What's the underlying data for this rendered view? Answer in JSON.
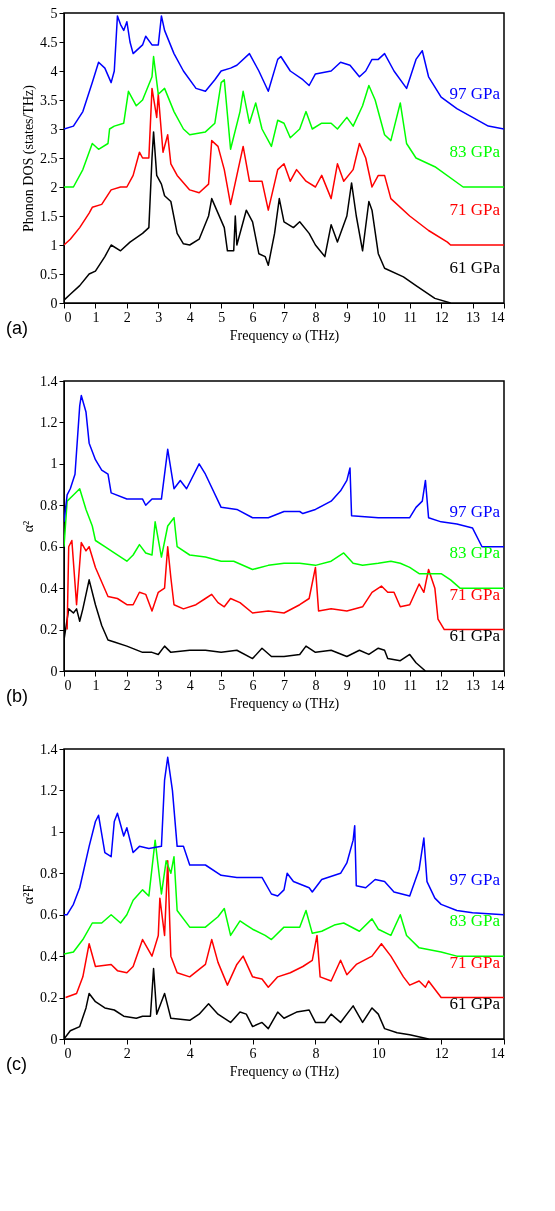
{
  "chart_data": [
    {
      "type": "line",
      "xlabel": "Frequency ω (THz)",
      "ylabel": "Phonon DOS (states/THz)",
      "annotations": [
        "(a)"
      ],
      "grid": false,
      "xlim": [
        0,
        14
      ],
      "xticks": [
        0,
        1,
        2,
        3,
        4,
        5,
        6,
        7,
        8,
        9,
        10,
        11,
        12,
        13,
        14
      ],
      "ylim": [
        0,
        5
      ],
      "yticks": [
        0,
        0.5,
        1,
        1.5,
        2,
        2.5,
        3,
        3.5,
        4,
        4.5,
        5
      ],
      "series": [
        {
          "name": "61 GPa",
          "color": "#000000",
          "x": [
            0,
            0.2,
            0.5,
            0.8,
            1.0,
            1.3,
            1.5,
            1.8,
            2.1,
            2.5,
            2.7,
            2.8,
            2.85,
            2.95,
            3.1,
            3.2,
            3.4,
            3.6,
            3.8,
            4.0,
            4.3,
            4.6,
            4.7,
            4.9,
            5.1,
            5.2,
            5.4,
            5.45,
            5.5,
            5.8,
            6.0,
            6.2,
            6.4,
            6.5,
            6.7,
            6.85,
            7.0,
            7.3,
            7.5,
            7.8,
            8.0,
            8.3,
            8.5,
            8.7,
            9.0,
            9.15,
            9.3,
            9.5,
            9.7,
            9.8,
            10.0,
            10.2,
            10.8,
            11.2,
            11.8,
            12.3
          ],
          "values": [
            0.05,
            0.15,
            0.3,
            0.5,
            0.55,
            0.8,
            1.0,
            0.9,
            1.05,
            1.2,
            1.3,
            2.5,
            2.95,
            2.2,
            2.05,
            1.85,
            1.75,
            1.2,
            1.02,
            1.0,
            1.1,
            1.5,
            1.8,
            1.55,
            1.3,
            0.9,
            0.9,
            1.5,
            1.0,
            1.6,
            1.4,
            0.85,
            0.8,
            0.65,
            1.2,
            1.8,
            1.4,
            1.3,
            1.4,
            1.2,
            1.0,
            0.8,
            1.35,
            1.05,
            1.5,
            2.07,
            1.5,
            0.9,
            1.75,
            1.6,
            0.85,
            0.6,
            0.45,
            0.3,
            0.08,
            0.0
          ]
        },
        {
          "name": "71 GPa",
          "color": "#ff0000",
          "x": [
            0,
            0.2,
            0.5,
            0.8,
            0.9,
            1.2,
            1.5,
            1.8,
            2.0,
            2.2,
            2.4,
            2.5,
            2.7,
            2.8,
            2.95,
            3.0,
            3.15,
            3.3,
            3.4,
            3.6,
            4.0,
            4.3,
            4.6,
            4.7,
            4.9,
            5.1,
            5.3,
            5.5,
            5.7,
            5.9,
            6.1,
            6.3,
            6.5,
            6.8,
            7.0,
            7.2,
            7.4,
            7.7,
            8.0,
            8.2,
            8.5,
            8.7,
            8.9,
            9.2,
            9.4,
            9.6,
            9.8,
            10.0,
            10.2,
            10.4,
            11.0,
            11.6,
            12.2,
            12.3,
            14
          ],
          "values": [
            1.0,
            1.1,
            1.3,
            1.55,
            1.65,
            1.7,
            1.95,
            2.0,
            2.0,
            2.2,
            2.6,
            2.5,
            2.5,
            3.7,
            3.2,
            3.6,
            2.6,
            2.9,
            2.4,
            2.2,
            1.95,
            1.9,
            2.05,
            2.8,
            2.7,
            2.3,
            1.7,
            2.2,
            2.7,
            2.1,
            2.1,
            2.1,
            1.6,
            2.3,
            2.4,
            2.1,
            2.3,
            2.1,
            2.0,
            2.2,
            1.8,
            2.4,
            2.1,
            2.3,
            2.75,
            2.5,
            2.0,
            2.2,
            2.2,
            1.8,
            1.5,
            1.25,
            1.05,
            1.0,
            1.0
          ]
        },
        {
          "name": "83 GPa",
          "color": "#00ff00",
          "x": [
            0,
            0.3,
            0.6,
            0.9,
            1.1,
            1.4,
            1.45,
            1.6,
            1.9,
            2.05,
            2.3,
            2.5,
            2.8,
            2.85,
            3.0,
            3.2,
            3.5,
            3.8,
            4.0,
            4.5,
            4.8,
            5.0,
            5.1,
            5.3,
            5.6,
            5.7,
            5.9,
            6.1,
            6.3,
            6.6,
            6.8,
            7.0,
            7.2,
            7.5,
            7.7,
            7.9,
            8.2,
            8.5,
            8.7,
            9.0,
            9.2,
            9.5,
            9.7,
            9.9,
            10.2,
            10.4,
            10.7,
            10.9,
            11.2,
            11.8,
            12.7,
            14
          ],
          "values": [
            2.0,
            2.0,
            2.3,
            2.75,
            2.65,
            2.75,
            3.0,
            3.05,
            3.1,
            3.65,
            3.4,
            3.5,
            3.9,
            4.25,
            3.6,
            3.7,
            3.3,
            3.0,
            2.9,
            2.95,
            3.1,
            3.8,
            3.85,
            2.65,
            3.3,
            3.65,
            3.1,
            3.45,
            3.0,
            2.7,
            3.15,
            3.1,
            2.85,
            3.0,
            3.3,
            3.0,
            3.1,
            3.1,
            3.0,
            3.2,
            3.05,
            3.4,
            3.75,
            3.5,
            2.9,
            2.8,
            3.45,
            2.75,
            2.5,
            2.35,
            2.0,
            2.0
          ]
        },
        {
          "name": "97 GPa",
          "color": "#0000ff",
          "x": [
            0,
            0.3,
            0.6,
            0.9,
            1.1,
            1.3,
            1.5,
            1.6,
            1.7,
            1.8,
            1.9,
            2.0,
            2.1,
            2.2,
            2.5,
            2.6,
            2.8,
            3.0,
            3.1,
            3.2,
            3.5,
            3.8,
            4.2,
            4.5,
            4.8,
            5.0,
            5.3,
            5.5,
            5.9,
            6.2,
            6.5,
            6.8,
            6.9,
            7.2,
            7.6,
            7.8,
            8.0,
            8.5,
            8.8,
            9.1,
            9.4,
            9.6,
            9.8,
            10.0,
            10.2,
            10.5,
            10.9,
            11.2,
            11.4,
            11.6,
            12.0,
            12.5,
            13.0,
            13.5,
            14
          ],
          "values": [
            3.0,
            3.05,
            3.3,
            3.8,
            4.15,
            4.05,
            3.8,
            4.0,
            4.95,
            4.8,
            4.7,
            4.85,
            4.5,
            4.3,
            4.45,
            4.6,
            4.45,
            4.45,
            4.95,
            4.7,
            4.3,
            4.0,
            3.7,
            3.65,
            3.85,
            4.0,
            4.05,
            4.1,
            4.3,
            4.0,
            3.65,
            4.2,
            4.25,
            4.0,
            3.85,
            3.75,
            3.95,
            4.0,
            4.15,
            4.1,
            3.9,
            4.0,
            4.2,
            4.2,
            4.3,
            4.0,
            3.7,
            4.2,
            4.35,
            3.9,
            3.55,
            3.35,
            3.2,
            3.05,
            3.0
          ]
        }
      ]
    },
    {
      "type": "line",
      "xlabel": "Frequency ω (THz)",
      "ylabel": "α²",
      "annotations": [
        "(b)"
      ],
      "grid": false,
      "xlim": [
        0,
        14
      ],
      "xticks": [
        0,
        1,
        2,
        3,
        4,
        5,
        6,
        7,
        8,
        9,
        10,
        11,
        12,
        13,
        14
      ],
      "ylim": [
        0,
        1.4
      ],
      "yticks": [
        0,
        0.2,
        0.4,
        0.6,
        0.8,
        1,
        1.2,
        1.4
      ],
      "series": [
        {
          "name": "61 GPa",
          "color": "#000000",
          "x": [
            0,
            0.05,
            0.15,
            0.3,
            0.4,
            0.5,
            0.6,
            0.8,
            1.0,
            1.2,
            1.4,
            1.6,
            2.0,
            2.5,
            2.8,
            3.0,
            3.2,
            3.4,
            4.0,
            4.5,
            5.0,
            5.5,
            6.0,
            6.3,
            6.6,
            7.0,
            7.5,
            7.7,
            8.0,
            8.5,
            9.0,
            9.4,
            9.7,
            10.0,
            10.2,
            10.3,
            10.7,
            11.0,
            11.2,
            11.5
          ],
          "values": [
            0.15,
            0.2,
            0.3,
            0.28,
            0.3,
            0.24,
            0.3,
            0.44,
            0.32,
            0.22,
            0.15,
            0.14,
            0.12,
            0.09,
            0.09,
            0.08,
            0.12,
            0.09,
            0.1,
            0.1,
            0.09,
            0.1,
            0.06,
            0.11,
            0.07,
            0.07,
            0.08,
            0.12,
            0.09,
            0.1,
            0.07,
            0.1,
            0.08,
            0.11,
            0.1,
            0.06,
            0.05,
            0.08,
            0.04,
            0.0
          ]
        },
        {
          "name": "71 GPa",
          "color": "#ff0000",
          "x": [
            0.1,
            0.15,
            0.25,
            0.4,
            0.55,
            0.7,
            0.8,
            1.0,
            1.2,
            1.4,
            1.7,
            2.0,
            2.2,
            2.4,
            2.6,
            2.8,
            3.0,
            3.2,
            3.3,
            3.4,
            3.5,
            3.8,
            4.2,
            4.5,
            4.7,
            4.9,
            5.1,
            5.3,
            5.6,
            6.0,
            6.5,
            7.0,
            7.5,
            7.8,
            8.0,
            8.1,
            8.5,
            9.0,
            9.5,
            9.8,
            10.1,
            10.3,
            10.5,
            10.7,
            11.0,
            11.3,
            11.45,
            11.6,
            11.8,
            11.9,
            12.1,
            14
          ],
          "values": [
            0.2,
            0.6,
            0.63,
            0.32,
            0.62,
            0.58,
            0.6,
            0.5,
            0.43,
            0.36,
            0.35,
            0.32,
            0.32,
            0.38,
            0.37,
            0.29,
            0.38,
            0.4,
            0.6,
            0.45,
            0.32,
            0.3,
            0.32,
            0.35,
            0.37,
            0.33,
            0.31,
            0.35,
            0.33,
            0.28,
            0.29,
            0.28,
            0.32,
            0.35,
            0.5,
            0.29,
            0.3,
            0.29,
            0.31,
            0.38,
            0.41,
            0.38,
            0.38,
            0.31,
            0.32,
            0.42,
            0.38,
            0.49,
            0.4,
            0.25,
            0.2,
            0.2
          ]
        },
        {
          "name": "83 GPa",
          "color": "#00ff00",
          "x": [
            0,
            0.1,
            0.3,
            0.5,
            0.7,
            0.9,
            1.0,
            1.3,
            1.6,
            2.0,
            2.2,
            2.4,
            2.6,
            2.8,
            2.9,
            3.1,
            3.3,
            3.5,
            3.6,
            4.0,
            4.5,
            5.0,
            5.4,
            6.0,
            6.5,
            7.0,
            7.5,
            8.0,
            8.5,
            8.9,
            9.2,
            9.5,
            10.0,
            10.4,
            10.7,
            11.0,
            11.3,
            12.0,
            12.3,
            12.6,
            14
          ],
          "values": [
            0.6,
            0.82,
            0.85,
            0.88,
            0.78,
            0.7,
            0.63,
            0.6,
            0.57,
            0.53,
            0.56,
            0.61,
            0.57,
            0.56,
            0.72,
            0.55,
            0.7,
            0.74,
            0.6,
            0.56,
            0.55,
            0.53,
            0.53,
            0.49,
            0.51,
            0.52,
            0.52,
            0.51,
            0.53,
            0.57,
            0.52,
            0.51,
            0.52,
            0.53,
            0.52,
            0.5,
            0.47,
            0.47,
            0.44,
            0.4,
            0.4
          ]
        },
        {
          "name": "97 GPa",
          "color": "#0000ff",
          "x": [
            0,
            0.1,
            0.2,
            0.35,
            0.5,
            0.55,
            0.7,
            0.8,
            1.0,
            1.2,
            1.4,
            1.5,
            2.0,
            2.5,
            2.6,
            2.8,
            3.1,
            3.3,
            3.5,
            3.7,
            3.9,
            4.3,
            4.5,
            5.0,
            5.5,
            6.0,
            6.5,
            7.0,
            7.5,
            7.6,
            8.0,
            8.5,
            8.8,
            9.0,
            9.1,
            9.15,
            10.0,
            11.0,
            11.2,
            11.4,
            11.5,
            11.6,
            12.0,
            12.5,
            13.0,
            13.3,
            14
          ],
          "values": [
            0.72,
            0.85,
            0.88,
            0.95,
            1.28,
            1.33,
            1.25,
            1.1,
            1.02,
            0.97,
            0.95,
            0.86,
            0.83,
            0.83,
            0.8,
            0.83,
            0.83,
            1.07,
            0.88,
            0.92,
            0.88,
            1.0,
            0.95,
            0.79,
            0.78,
            0.74,
            0.74,
            0.77,
            0.77,
            0.76,
            0.78,
            0.82,
            0.87,
            0.92,
            0.98,
            0.75,
            0.74,
            0.74,
            0.79,
            0.82,
            0.92,
            0.74,
            0.72,
            0.71,
            0.69,
            0.6,
            0.6
          ]
        }
      ]
    },
    {
      "type": "line",
      "xlabel": "Frequency ω (THz)",
      "ylabel": "α²F",
      "annotations": [
        "(c)"
      ],
      "grid": false,
      "xlim": [
        0,
        14
      ],
      "xticks": [
        0,
        2,
        4,
        6,
        8,
        10,
        12,
        14
      ],
      "ylim": [
        0,
        1.4
      ],
      "yticks": [
        0,
        0.2,
        0.4,
        0.6,
        0.8,
        1,
        1.2,
        1.4
      ],
      "series": [
        {
          "name": "61 GPa",
          "color": "#000000",
          "x": [
            0,
            0.2,
            0.5,
            0.7,
            0.8,
            1.0,
            1.3,
            1.6,
            1.9,
            2.3,
            2.5,
            2.75,
            2.85,
            2.95,
            3.2,
            3.4,
            4.0,
            4.3,
            4.6,
            4.9,
            5.3,
            5.6,
            5.8,
            6.0,
            6.3,
            6.5,
            6.8,
            7.0,
            7.4,
            7.8,
            8.0,
            8.3,
            8.5,
            8.8,
            9.2,
            9.5,
            9.8,
            10.0,
            10.2,
            10.6,
            11.0,
            11.6
          ],
          "values": [
            0.0,
            0.04,
            0.06,
            0.15,
            0.22,
            0.18,
            0.15,
            0.14,
            0.11,
            0.1,
            0.11,
            0.11,
            0.34,
            0.12,
            0.22,
            0.1,
            0.09,
            0.12,
            0.17,
            0.12,
            0.08,
            0.13,
            0.12,
            0.06,
            0.08,
            0.05,
            0.13,
            0.1,
            0.13,
            0.14,
            0.08,
            0.08,
            0.12,
            0.08,
            0.16,
            0.08,
            0.15,
            0.12,
            0.05,
            0.03,
            0.02,
            0.0
          ]
        },
        {
          "name": "71 GPa",
          "color": "#ff0000",
          "x": [
            0.05,
            0.4,
            0.6,
            0.8,
            1.0,
            1.5,
            1.7,
            2.0,
            2.2,
            2.5,
            2.8,
            3.0,
            3.05,
            3.2,
            3.3,
            3.4,
            3.6,
            4.0,
            4.5,
            4.7,
            4.9,
            5.2,
            5.5,
            5.7,
            6.0,
            6.3,
            6.5,
            6.8,
            7.2,
            7.6,
            7.9,
            8.05,
            8.15,
            8.5,
            8.8,
            9.0,
            9.3,
            9.8,
            10.1,
            10.4,
            10.8,
            11.0,
            11.3,
            11.5,
            11.6,
            11.8,
            12.0,
            14
          ],
          "values": [
            0.2,
            0.22,
            0.3,
            0.46,
            0.35,
            0.36,
            0.33,
            0.32,
            0.35,
            0.48,
            0.4,
            0.5,
            0.68,
            0.5,
            0.86,
            0.4,
            0.32,
            0.3,
            0.36,
            0.48,
            0.37,
            0.26,
            0.36,
            0.4,
            0.3,
            0.29,
            0.25,
            0.3,
            0.32,
            0.35,
            0.38,
            0.5,
            0.3,
            0.28,
            0.38,
            0.31,
            0.36,
            0.4,
            0.46,
            0.4,
            0.3,
            0.26,
            0.28,
            0.25,
            0.28,
            0.24,
            0.2,
            0.2
          ]
        },
        {
          "name": "83 GPa",
          "color": "#00ff00",
          "x": [
            0,
            0.3,
            0.6,
            0.9,
            1.2,
            1.5,
            1.8,
            2.0,
            2.2,
            2.5,
            2.7,
            2.9,
            3.1,
            3.25,
            3.4,
            3.5,
            3.6,
            4.0,
            4.5,
            4.9,
            5.1,
            5.3,
            5.6,
            5.8,
            6.0,
            6.4,
            6.6,
            7.0,
            7.5,
            7.7,
            7.9,
            8.2,
            8.6,
            8.9,
            9.4,
            9.8,
            10.0,
            10.4,
            10.7,
            10.9,
            11.3,
            12.0,
            12.5,
            14
          ],
          "values": [
            0.41,
            0.42,
            0.48,
            0.56,
            0.56,
            0.6,
            0.56,
            0.6,
            0.67,
            0.72,
            0.69,
            0.96,
            0.7,
            0.86,
            0.8,
            0.88,
            0.62,
            0.54,
            0.54,
            0.59,
            0.63,
            0.5,
            0.57,
            0.55,
            0.53,
            0.5,
            0.48,
            0.54,
            0.54,
            0.62,
            0.51,
            0.52,
            0.55,
            0.56,
            0.52,
            0.58,
            0.53,
            0.5,
            0.6,
            0.5,
            0.44,
            0.42,
            0.4,
            0.4
          ]
        },
        {
          "name": "97 GPa",
          "color": "#0000ff",
          "x": [
            0,
            0.1,
            0.3,
            0.5,
            0.8,
            1.0,
            1.1,
            1.3,
            1.5,
            1.6,
            1.7,
            1.9,
            2.0,
            2.2,
            2.4,
            2.7,
            3.1,
            3.2,
            3.3,
            3.45,
            3.6,
            3.8,
            4.0,
            4.5,
            5.0,
            5.5,
            5.8,
            6.3,
            6.6,
            6.8,
            7.0,
            7.1,
            7.3,
            7.8,
            7.9,
            8.2,
            8.8,
            9.0,
            9.2,
            9.25,
            9.3,
            9.6,
            9.9,
            10.2,
            10.5,
            11.0,
            11.3,
            11.45,
            11.55,
            11.8,
            12.0,
            12.5,
            13,
            14
          ],
          "values": [
            0.6,
            0.6,
            0.65,
            0.73,
            0.93,
            1.05,
            1.08,
            0.9,
            0.88,
            1.05,
            1.09,
            0.98,
            1.02,
            0.9,
            0.93,
            0.92,
            0.93,
            1.25,
            1.36,
            1.2,
            0.93,
            0.93,
            0.84,
            0.84,
            0.79,
            0.78,
            0.78,
            0.78,
            0.7,
            0.69,
            0.72,
            0.8,
            0.76,
            0.73,
            0.71,
            0.77,
            0.8,
            0.85,
            0.96,
            1.03,
            0.74,
            0.73,
            0.77,
            0.76,
            0.71,
            0.69,
            0.82,
            0.97,
            0.76,
            0.68,
            0.65,
            0.62,
            0.61,
            0.6
          ]
        }
      ]
    }
  ]
}
